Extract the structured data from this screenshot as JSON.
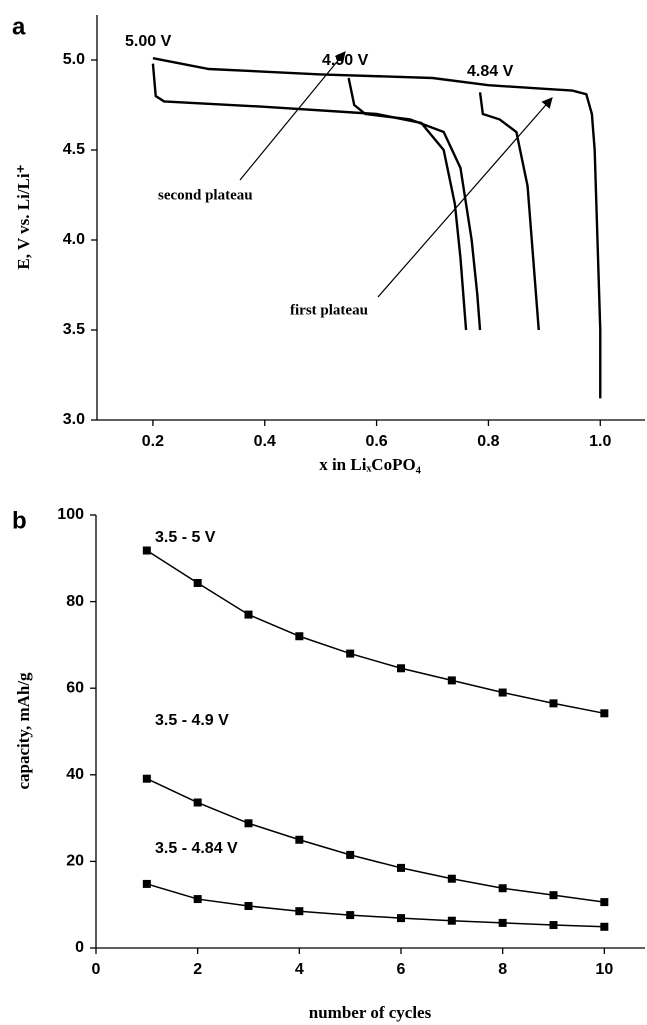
{
  "chart_data": [
    {
      "type": "line",
      "panel": "a",
      "xlabel": "x in LiₓCoPO₄",
      "ylabel": "E, V  vs. Li/Li⁺",
      "xlim": [
        0.1,
        1.08
      ],
      "ylim": [
        3.0,
        5.25
      ],
      "xticks": [
        0.2,
        0.4,
        0.6,
        0.8,
        {
          "value": 1.0,
          "label": "1.0"
        }
      ],
      "yticks": [
        {
          "value": 3.0,
          "label": "3.0"
        },
        3.5,
        {
          "value": 4.0,
          "label": "4.0"
        },
        4.5,
        {
          "value": 5.0,
          "label": "5.0"
        }
      ],
      "annotations": [
        "5.00 V",
        "4.90 V",
        "4.84 V",
        "second plateau",
        "first plateau"
      ],
      "color": "#000000",
      "series": [
        {
          "x": [
            0.2,
            0.3,
            0.5,
            0.7,
            0.8,
            0.9,
            0.95,
            0.975,
            0.985,
            0.99,
            0.995,
            1.0,
            1.0
          ],
          "values": [
            5.01,
            4.95,
            4.92,
            4.9,
            4.86,
            4.84,
            4.83,
            4.81,
            4.7,
            4.5,
            4.0,
            3.5,
            3.12
          ]
        },
        {
          "x": [
            0.2,
            0.205,
            0.22,
            0.4,
            0.6,
            0.68,
            0.72,
            0.74,
            0.75,
            0.76
          ],
          "values": [
            4.98,
            4.8,
            4.77,
            4.74,
            4.7,
            4.65,
            4.5,
            4.2,
            3.9,
            3.5
          ]
        },
        {
          "x": [
            0.55,
            0.56,
            0.58,
            0.66,
            0.72,
            0.75,
            0.77,
            0.78,
            0.785
          ],
          "values": [
            4.9,
            4.75,
            4.7,
            4.67,
            4.6,
            4.4,
            4.0,
            3.7,
            3.5
          ]
        },
        {
          "x": [
            0.785,
            0.79,
            0.82,
            0.85,
            0.87,
            0.88,
            0.89
          ],
          "values": [
            4.82,
            4.7,
            4.67,
            4.6,
            4.3,
            3.9,
            3.5
          ]
        }
      ]
    },
    {
      "type": "line",
      "panel": "b",
      "xlabel": "number of cycles",
      "ylabel": "capacity, mAh/g",
      "xlim": [
        0,
        10.8
      ],
      "ylim": [
        0,
        100
      ],
      "xticks": [
        0,
        2,
        4,
        6,
        8,
        10
      ],
      "yticks": [
        0,
        20,
        40,
        60,
        80,
        100
      ],
      "color": "#000000",
      "markers": true,
      "series": [
        {
          "name": "3.5 - 5 V",
          "x": [
            1,
            2,
            3,
            4,
            5,
            6,
            7,
            8,
            9,
            10
          ],
          "values": [
            91.8,
            84.3,
            77,
            72,
            68,
            64.6,
            61.8,
            59,
            56.5,
            54.2
          ]
        },
        {
          "name": "3.5 - 4.9 V",
          "x": [
            1,
            2,
            3,
            4,
            5,
            6,
            7,
            8,
            9,
            10
          ],
          "values": [
            39.1,
            33.6,
            28.8,
            25,
            21.5,
            18.5,
            16,
            13.8,
            12.2,
            10.6
          ]
        },
        {
          "name": "3.5 - 4.84 V",
          "x": [
            1,
            2,
            3,
            4,
            5,
            6,
            7,
            8,
            9,
            10
          ],
          "values": [
            14.8,
            11.3,
            9.7,
            8.5,
            7.6,
            6.9,
            6.3,
            5.8,
            5.3,
            4.9
          ]
        }
      ]
    }
  ]
}
